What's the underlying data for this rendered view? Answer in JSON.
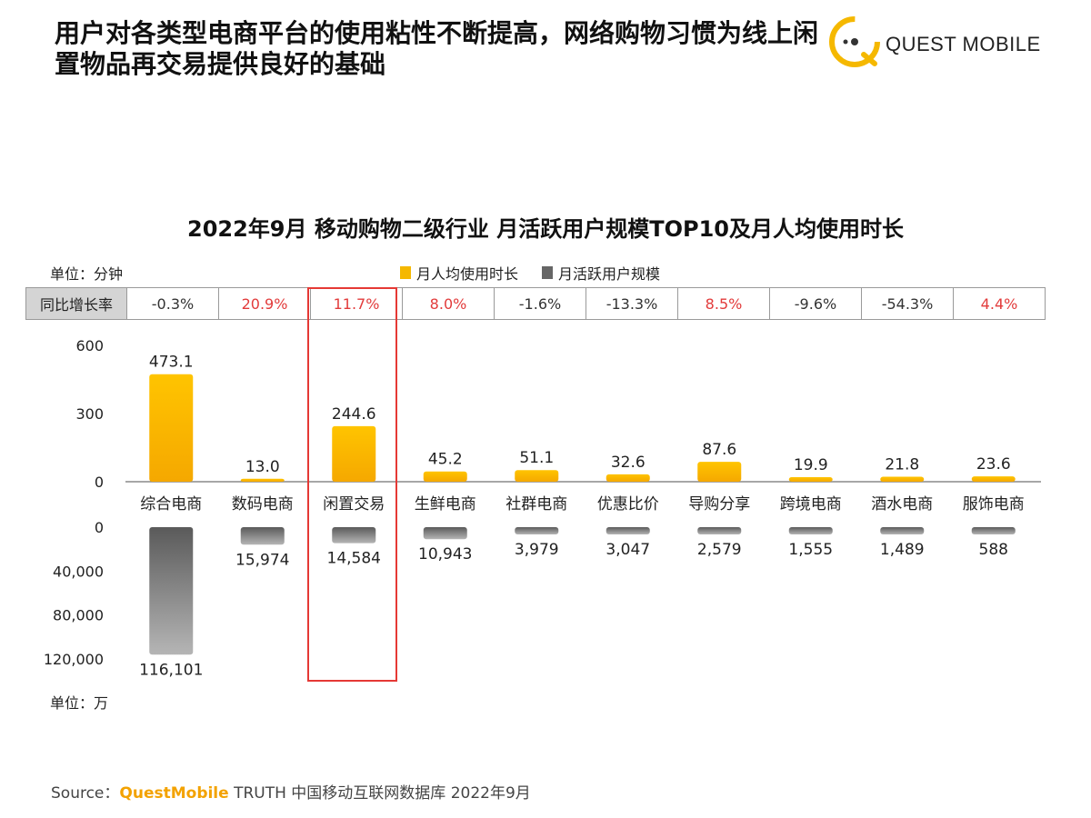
{
  "header": {
    "headline": "用户对各类型电商平台的使用粘性不断提高，网络购物习惯为线上闲置物品再交易提供良好的基础",
    "logo_text": "QUEST MOBILE"
  },
  "colors": {
    "accent_yellow": "#f5b800",
    "accent_grey": "#666666",
    "positive_red": "#e23b3b",
    "highlight_red": "#e53935"
  },
  "chart_data": {
    "type": "bar",
    "title": "2022年9月 移动购物二级行业 月活跃用户规模TOP10及月人均使用时长",
    "categories": [
      "综合电商",
      "数码电商",
      "闲置交易",
      "生鲜电商",
      "社群电商",
      "优惠比价",
      "导购分享",
      "跨境电商",
      "酒水电商",
      "服饰电商"
    ],
    "highlighted_category": "闲置交易",
    "series": [
      {
        "name": "月人均使用时长",
        "unit": "单位：分钟",
        "values": [
          473.1,
          13.0,
          244.6,
          45.2,
          51.1,
          32.6,
          87.6,
          19.9,
          21.8,
          23.6
        ],
        "labels": [
          "473.1",
          "13.0",
          "244.6",
          "45.2",
          "51.1",
          "32.6",
          "87.6",
          "19.9",
          "21.8",
          "23.6"
        ],
        "ylim": [
          0,
          600
        ],
        "ticks": [
          "0",
          "300",
          "600"
        ]
      },
      {
        "name": "月活跃用户规模",
        "unit": "单位：万",
        "values": [
          116101,
          15974,
          14584,
          10943,
          3979,
          3047,
          2579,
          1555,
          1489,
          588
        ],
        "labels": [
          "116,101",
          "15,974",
          "14,584",
          "10,943",
          "3,979",
          "3,047",
          "2,579",
          "1,555",
          "1,489",
          "588"
        ],
        "ylim": [
          0,
          120000
        ],
        "ticks": [
          "0",
          "40,000",
          "80,000",
          "120,000"
        ]
      }
    ],
    "growth_rate": {
      "label": "同比增长率",
      "values": [
        "-0.3%",
        "20.9%",
        "11.7%",
        "8.0%",
        "-1.6%",
        "-13.3%",
        "8.5%",
        "-9.6%",
        "-54.3%",
        "4.4%"
      ]
    }
  },
  "footer": {
    "source_label": "Source：",
    "source_brand": "QuestMobile",
    "source_rest": " TRUTH 中国移动互联网数据库 2022年9月"
  }
}
